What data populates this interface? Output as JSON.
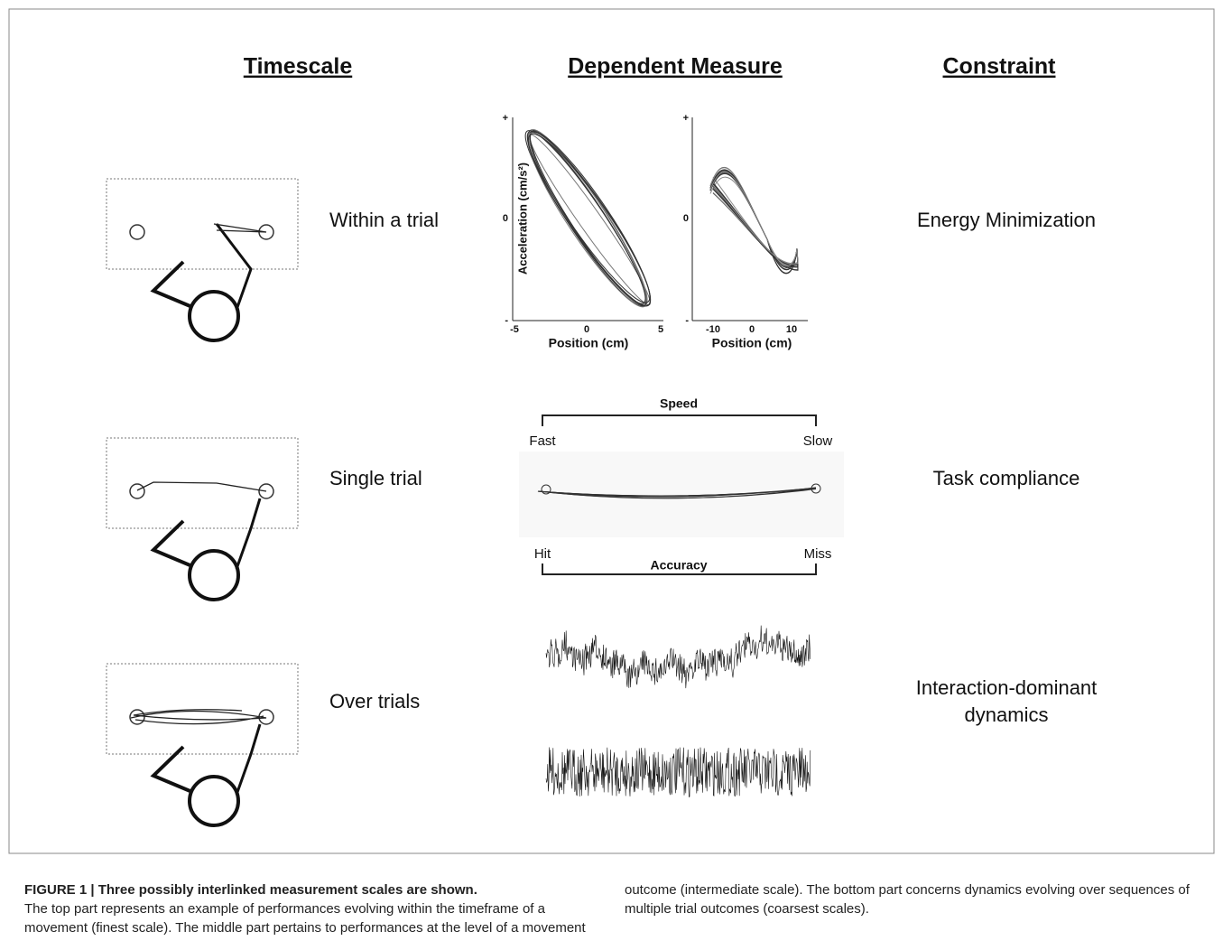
{
  "headers": [
    "Timescale",
    "Dependent Measure",
    "Constraint"
  ],
  "rows": [
    {
      "timescale": "Within a trial",
      "constraint": "Energy Minimization"
    },
    {
      "timescale": "Single trial",
      "constraint": "Task compliance"
    },
    {
      "timescale": "Over trials",
      "constraint": [
        "Interaction-dominant",
        "dynamics"
      ]
    }
  ],
  "plots": [
    {
      "y_label": "Acceleration (cm/s²)",
      "x_label": "Position (cm)",
      "xticks": [
        "-5",
        "0",
        "5"
      ],
      "yticks": [
        "+",
        "0",
        "-"
      ]
    },
    {
      "x_label": "Position (cm)",
      "xticks": [
        "-10",
        "0",
        "10"
      ],
      "yticks": [
        "+",
        "0",
        "-"
      ]
    }
  ],
  "speed_accuracy": {
    "top": "Speed",
    "top_left": "Fast",
    "top_right": "Slow",
    "bottom_left": "Hit",
    "bottom_right": "Miss",
    "bottom": "Accuracy"
  },
  "caption": {
    "title": "FIGURE 1 | Three possibly interlinked measurement scales are shown.",
    "body": "The top part represents an example of performances evolving within the timeframe of a movement (finest scale). The middle part pertains to performances at the level of a movement outcome (intermediate scale). The bottom part concerns dynamics evolving over sequences of multiple trial outcomes (coarsest scales)."
  }
}
